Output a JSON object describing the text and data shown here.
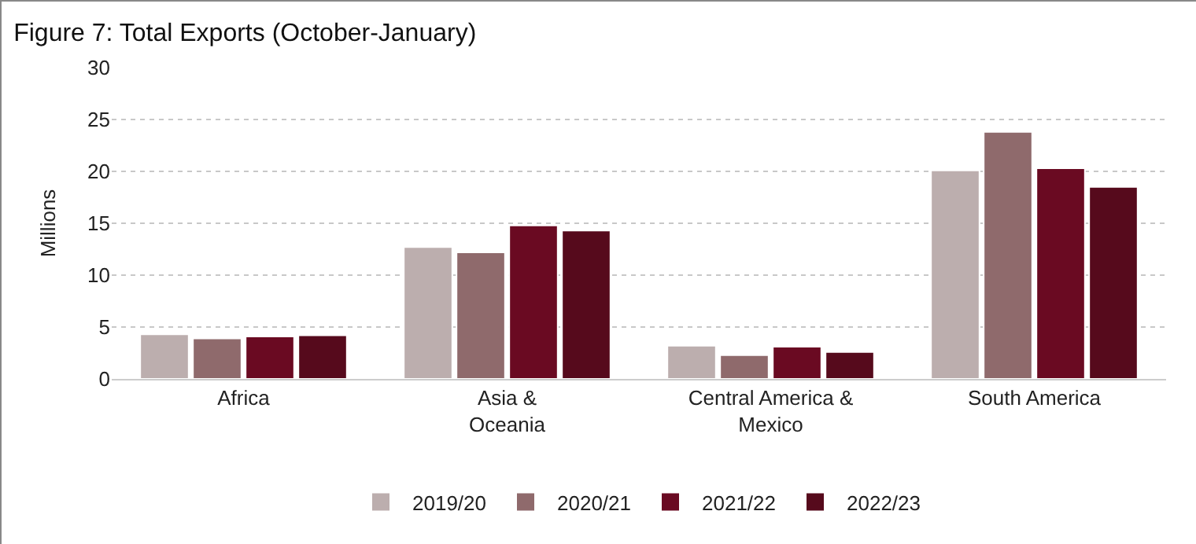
{
  "chart_data": {
    "type": "bar",
    "title": "Figure 7: Total Exports (October-January)",
    "ylabel": "Millions",
    "categories": [
      "Africa",
      "Asia & Oceania",
      "Central America & Mexico",
      "South America"
    ],
    "series": [
      {
        "name": "2019/20",
        "color": "#bcaeae",
        "values": [
          4.3,
          12.7,
          3.2,
          20.1
        ]
      },
      {
        "name": "2020/21",
        "color": "#8f6a6c",
        "values": [
          3.9,
          12.2,
          2.3,
          23.8
        ]
      },
      {
        "name": "2021/22",
        "color": "#6a0a22",
        "values": [
          4.1,
          14.8,
          3.1,
          20.3
        ]
      },
      {
        "name": "2022/23",
        "color": "#560a1c",
        "values": [
          4.2,
          14.3,
          2.6,
          18.5
        ]
      }
    ],
    "ylim": [
      0,
      30
    ],
    "yticks": [
      0,
      5,
      10,
      15,
      20,
      25,
      30
    ],
    "grid": "y",
    "legend": "bottom"
  }
}
